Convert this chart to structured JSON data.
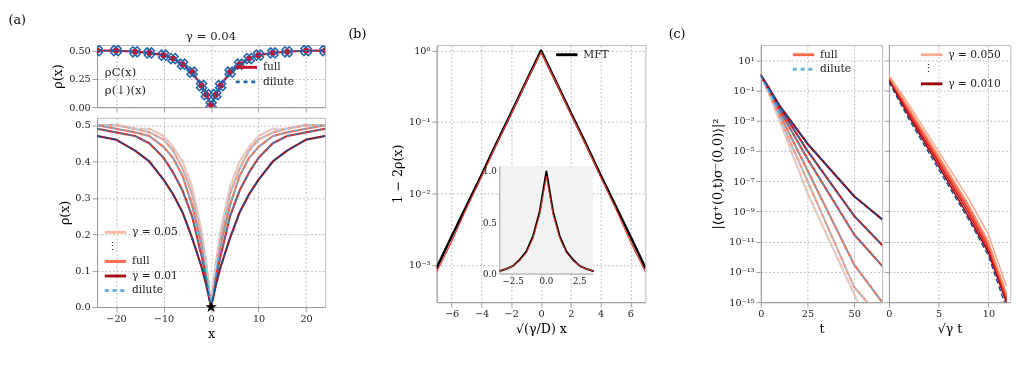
{
  "chart_data": [
    {
      "type": "line",
      "title": "(a)",
      "ylabel": "ρ(x)",
      "x": [
        -24,
        -20,
        -16,
        -13,
        -10,
        -8,
        -6,
        -4,
        -2,
        -1,
        0,
        1,
        2,
        4,
        6,
        8,
        10,
        13,
        16,
        20,
        24
      ],
      "xlim": [
        -24,
        24
      ],
      "xticks": [
        -20,
        -10,
        0,
        10,
        20
      ],
      "ylim": [
        0,
        0.55
      ],
      "yticks": [
        {
          "value": 0,
          "label": "0.00"
        },
        {
          "value": 0.25,
          "label": "0.25"
        },
        {
          "value": 0.5,
          "label": "0.50"
        }
      ],
      "tick_labels": "y",
      "grid": true,
      "legend": "right",
      "annotations": [
        "γ = 0.04",
        "ρC(x)",
        "ρ(↓)(x)"
      ],
      "series": [
        {
          "name": "full",
          "color": "#c8102e",
          "marker": "circle",
          "values": [
            0.5,
            0.5,
            0.49,
            0.48,
            0.46,
            0.43,
            0.38,
            0.31,
            0.19,
            0.11,
            0.02,
            0.11,
            0.19,
            0.31,
            0.38,
            0.43,
            0.46,
            0.48,
            0.49,
            0.5,
            0.5
          ]
        },
        {
          "name": "dilute",
          "color": "#2166ac",
          "marker": "cross",
          "line_style": "dashed",
          "values": [
            0.5,
            0.5,
            0.49,
            0.48,
            0.46,
            0.43,
            0.38,
            0.31,
            0.19,
            0.11,
            0.02,
            0.11,
            0.19,
            0.31,
            0.38,
            0.43,
            0.46,
            0.48,
            0.49,
            0.5,
            0.5
          ]
        }
      ]
    },
    {
      "type": "line",
      "xlabel": "x",
      "ylabel": "ρ(x)",
      "x": [
        -24,
        -20,
        -16,
        -13,
        -10,
        -8,
        -6,
        -4,
        -2,
        -1,
        0,
        1,
        2,
        4,
        6,
        8,
        10,
        13,
        16,
        20,
        24
      ],
      "xlim": [
        -24,
        24
      ],
      "xticks": [
        -20,
        -10,
        0,
        10,
        20
      ],
      "ylim": [
        0,
        0.52
      ],
      "yticks": [
        {
          "value": 0,
          "label": "0.0"
        },
        0.1,
        0.2,
        0.3,
        0.4,
        0.5
      ],
      "grid": true,
      "legend": "bottom left",
      "annotations": [
        "⋮"
      ],
      "series": [
        {
          "name": "γ = 0.05",
          "color": "#fcbba1",
          "values": [
            0.5,
            0.5,
            0.49,
            0.49,
            0.47,
            0.44,
            0.4,
            0.33,
            0.21,
            0.12,
            0,
            0.12,
            0.21,
            0.33,
            0.4,
            0.44,
            0.47,
            0.49,
            0.49,
            0.5,
            0.5
          ]
        },
        {
          "color": "#fc9272",
          "values": [
            0.5,
            0.5,
            0.49,
            0.48,
            0.46,
            0.43,
            0.38,
            0.31,
            0.19,
            0.11,
            0,
            0.11,
            0.19,
            0.31,
            0.38,
            0.43,
            0.46,
            0.48,
            0.49,
            0.5,
            0.5
          ]
        },
        {
          "name": "full",
          "color": "#fb6a4a",
          "values": [
            0.5,
            0.49,
            0.48,
            0.47,
            0.44,
            0.41,
            0.36,
            0.28,
            0.17,
            0.09,
            0,
            0.09,
            0.17,
            0.28,
            0.36,
            0.41,
            0.44,
            0.47,
            0.48,
            0.49,
            0.5
          ]
        },
        {
          "color": "#de2d26",
          "values": [
            0.49,
            0.48,
            0.47,
            0.45,
            0.41,
            0.37,
            0.32,
            0.25,
            0.14,
            0.08,
            0,
            0.08,
            0.14,
            0.25,
            0.32,
            0.37,
            0.41,
            0.45,
            0.47,
            0.48,
            0.49
          ]
        },
        {
          "name": "γ = 0.01",
          "color": "#a50f15",
          "values": [
            0.47,
            0.46,
            0.43,
            0.4,
            0.35,
            0.31,
            0.26,
            0.19,
            0.11,
            0.06,
            0,
            0.06,
            0.11,
            0.19,
            0.26,
            0.31,
            0.35,
            0.4,
            0.43,
            0.46,
            0.47
          ]
        },
        {
          "color": "#c6dbef",
          "line_style": "dashed",
          "values": [
            0.5,
            0.5,
            0.49,
            0.49,
            0.47,
            0.44,
            0.4,
            0.33,
            0.21,
            0.12,
            0,
            0.12,
            0.21,
            0.33,
            0.4,
            0.44,
            0.47,
            0.49,
            0.49,
            0.5,
            0.5
          ]
        },
        {
          "color": "#9ecae1",
          "line_style": "dashed",
          "values": [
            0.5,
            0.5,
            0.49,
            0.48,
            0.46,
            0.43,
            0.38,
            0.31,
            0.19,
            0.11,
            0,
            0.11,
            0.19,
            0.31,
            0.38,
            0.43,
            0.46,
            0.48,
            0.49,
            0.5,
            0.5
          ]
        },
        {
          "name": "dilute",
          "color": "#6baed6",
          "line_style": "dashed",
          "values": [
            0.5,
            0.49,
            0.48,
            0.47,
            0.44,
            0.41,
            0.36,
            0.28,
            0.17,
            0.09,
            0,
            0.09,
            0.17,
            0.28,
            0.36,
            0.41,
            0.44,
            0.47,
            0.48,
            0.49,
            0.5
          ]
        },
        {
          "color": "#3182bd",
          "line_style": "dashed",
          "values": [
            0.49,
            0.48,
            0.47,
            0.45,
            0.41,
            0.37,
            0.32,
            0.25,
            0.14,
            0.08,
            0,
            0.08,
            0.14,
            0.25,
            0.32,
            0.37,
            0.41,
            0.45,
            0.47,
            0.48,
            0.49
          ]
        },
        {
          "color": "#08519c",
          "line_style": "dashed",
          "values": [
            0.47,
            0.46,
            0.43,
            0.4,
            0.35,
            0.31,
            0.26,
            0.19,
            0.11,
            0.06,
            0,
            0.06,
            0.11,
            0.19,
            0.26,
            0.31,
            0.35,
            0.4,
            0.43,
            0.46,
            0.47
          ]
        },
        {
          "type": "scatter",
          "marker": "star",
          "color": "#000000",
          "x": [
            0
          ],
          "values": [
            0
          ]
        }
      ]
    },
    {
      "type": "line",
      "title": "(b)",
      "xlabel": "√(γ/D) x",
      "ylabel": "1 − 2ρ(x)",
      "log": true,
      "x": [
        -7,
        -6,
        -5,
        -4,
        -3,
        -2,
        -1,
        0,
        1,
        2,
        3,
        4,
        5,
        6,
        7
      ],
      "xlim": [
        -7,
        7
      ],
      "xticks": [
        -6,
        -4,
        -2,
        0,
        2,
        4,
        6
      ],
      "ylim": [
        0.0003,
        1.2
      ],
      "yticks": [
        {
          "value": 0.001,
          "label": "10⁻³"
        },
        {
          "value": 0.01,
          "label": "10⁻²"
        },
        {
          "value": 0.1,
          "label": "10⁻¹"
        },
        {
          "value": 1,
          "label": "10⁰"
        }
      ],
      "grid": true,
      "legend": "top right",
      "series": [
        {
          "name": "MFT",
          "color": "#000000",
          "values": [
            0.00091,
            0.0025,
            0.0067,
            0.018,
            0.05,
            0.135,
            0.37,
            1,
            0.37,
            0.135,
            0.05,
            0.018,
            0.0067,
            0.0025,
            0.00091
          ]
        },
        {
          "color": "#ef3b2c",
          "values": [
            0.0008,
            0.0021,
            0.0062,
            0.017,
            0.048,
            0.13,
            0.36,
            0.95,
            0.36,
            0.13,
            0.048,
            0.017,
            0.0062,
            0.0021,
            0.0008
          ]
        }
      ]
    },
    {
      "type": "line",
      "x": [
        -3.5,
        -3,
        -2.5,
        -2,
        -1.5,
        -1,
        -0.5,
        0,
        0.5,
        1,
        1.5,
        2,
        2.5,
        3,
        3.5
      ],
      "xlim": [
        -3.5,
        3.5
      ],
      "xticks": [
        {
          "value": -2.5,
          "label": "−2.5"
        },
        {
          "value": 0,
          "label": "0.0"
        },
        2.5
      ],
      "ylim": [
        0,
        1.05
      ],
      "yticks": [
        {
          "value": 0,
          "label": "0.0"
        },
        0.5,
        {
          "value": 1,
          "label": "1.0"
        }
      ],
      "series": [
        {
          "color": "#000000",
          "values": [
            0.03,
            0.05,
            0.08,
            0.14,
            0.22,
            0.37,
            0.61,
            1,
            0.61,
            0.37,
            0.22,
            0.14,
            0.08,
            0.05,
            0.03
          ]
        },
        {
          "color": "#ef3b2c",
          "values": [
            0.03,
            0.05,
            0.08,
            0.13,
            0.21,
            0.35,
            0.58,
            0.95,
            0.58,
            0.35,
            0.21,
            0.13,
            0.08,
            0.05,
            0.03
          ]
        }
      ]
    },
    {
      "type": "line",
      "title": "(c)",
      "xlabel": "t",
      "ylabel": "|⟨σ⁺(0,t)σ⁻(0,0)⟩|²",
      "log": true,
      "xlim": [
        0,
        65
      ],
      "xticks": [
        0,
        25,
        50
      ],
      "ylim": [
        1e-15,
        100
      ],
      "yticks": [
        {
          "value": 1e-15,
          "label": "10⁻¹⁵"
        },
        {
          "value": 1e-13,
          "label": "10⁻¹³"
        },
        {
          "value": 1e-11,
          "label": "10⁻¹¹"
        },
        {
          "value": 1e-09,
          "label": "10⁻⁹"
        },
        {
          "value": 1e-07,
          "label": "10⁻⁷"
        },
        {
          "value": 1e-05,
          "label": "10⁻⁵"
        },
        {
          "value": 0.001,
          "label": "10⁻³"
        },
        {
          "value": 0.1,
          "label": "10⁻¹"
        },
        {
          "value": 10,
          "label": "10¹"
        }
      ],
      "grid": true,
      "legend": "top right",
      "series": [
        {
          "color": "#fcbba1",
          "x": [
            0,
            5,
            10,
            25,
            52
          ],
          "values": [
            1,
            0.04,
            0.001,
            1.6e-08,
            1e-15
          ]
        },
        {
          "color": "#fc9272",
          "x": [
            0,
            5,
            10,
            25,
            50,
            57
          ],
          "values": [
            1,
            0.05,
            0.0016,
            1e-07,
            1e-14,
            1e-15
          ]
        },
        {
          "name": "full",
          "color": "#fb6a4a",
          "x": [
            0,
            5,
            10,
            25,
            50,
            65
          ],
          "values": [
            1,
            0.06,
            0.003,
            5e-07,
            3e-13,
            1e-15
          ]
        },
        {
          "color": "#ef3b2c",
          "x": [
            0,
            5,
            10,
            25,
            50,
            65
          ],
          "values": [
            1,
            0.08,
            0.005,
            3e-06,
            3e-11,
            2.5e-13
          ]
        },
        {
          "color": "#cb181d",
          "x": [
            0,
            5,
            10,
            25,
            50,
            65
          ],
          "values": [
            1,
            0.1,
            0.008,
            1e-05,
            5e-10,
            6e-12
          ]
        },
        {
          "color": "#99000d",
          "x": [
            0,
            5,
            10,
            25,
            50,
            65
          ],
          "values": [
            1,
            0.1,
            0.01,
            3e-05,
            1e-08,
            3e-10
          ]
        },
        {
          "color": "#c6dbef",
          "line_style": "dashed",
          "x": [
            0,
            5,
            10,
            25,
            52
          ],
          "values": [
            1,
            0.04,
            0.001,
            1.6e-08,
            1e-15
          ]
        },
        {
          "color": "#9ecae1",
          "line_style": "dashed",
          "x": [
            0,
            5,
            10,
            25,
            50,
            57
          ],
          "values": [
            1,
            0.05,
            0.0016,
            1e-07,
            1e-14,
            1e-15
          ]
        },
        {
          "name": "dilute",
          "color": "#6baed6",
          "line_style": "dashed",
          "x": [
            0,
            5,
            10,
            25,
            50,
            65
          ],
          "values": [
            1,
            0.06,
            0.003,
            5e-07,
            3e-13,
            1e-15
          ]
        },
        {
          "color": "#4292c6",
          "line_style": "dashed",
          "x": [
            0,
            5,
            10,
            25,
            50,
            65
          ],
          "values": [
            1,
            0.08,
            0.005,
            3e-06,
            3e-11,
            2.5e-13
          ]
        },
        {
          "color": "#2171b5",
          "line_style": "dashed",
          "x": [
            0,
            5,
            10,
            25,
            50,
            65
          ],
          "values": [
            1,
            0.1,
            0.008,
            1e-05,
            5e-10,
            6e-12
          ]
        },
        {
          "color": "#08519c",
          "line_style": "dashed",
          "x": [
            0,
            5,
            10,
            25,
            50,
            65
          ],
          "values": [
            1,
            0.1,
            0.01,
            3e-05,
            1e-08,
            3e-10
          ]
        }
      ]
    },
    {
      "type": "line",
      "xlabel": "√γ t",
      "log": true,
      "x": [
        0,
        2,
        5,
        8,
        10,
        11.8
      ],
      "xlim": [
        0,
        12.2
      ],
      "xticks": [
        0,
        5,
        10
      ],
      "ylim": [
        1e-15,
        100
      ],
      "yticks": [
        1e-15,
        1e-13,
        1e-11,
        1e-09,
        1e-07,
        1e-05,
        0.001,
        0.1,
        10
      ],
      "tick_labels": "x",
      "grid": true,
      "legend": "top right",
      "annotations": [
        "⋮"
      ],
      "series": [
        {
          "name": "γ = 0.050",
          "color": "#fcab8f",
          "values": [
            1,
            0.012,
            9e-06,
            7e-09,
            3e-11,
            1.2e-14
          ]
        },
        {
          "color": "#fc9272",
          "values": [
            0.9,
            0.007,
            4.5e-06,
            2.8e-09,
            1e-11,
            4e-15
          ]
        },
        {
          "color": "#fb6a4a",
          "values": [
            0.8,
            0.0055,
            3.3e-06,
            1.9e-09,
            7e-12,
            3e-15
          ]
        },
        {
          "color": "#ef3b2c",
          "values": [
            0.7,
            0.0042,
            2.4e-06,
            1.3e-09,
            5e-12,
            2.2e-15
          ]
        },
        {
          "color": "#cb181d",
          "values": [
            0.6,
            0.003,
            1.6e-06,
            8e-10,
            3.2e-12,
            1.5e-15
          ]
        },
        {
          "name": "γ = 0.010",
          "color": "#99000d",
          "values": [
            0.5,
            0.002,
            1e-06,
            4.5e-10,
            2e-12,
            1e-15
          ]
        },
        {
          "color": "#08519c",
          "line_style": "dashed",
          "x": [
            0,
            2,
            5,
            8,
            10,
            11.6
          ],
          "values": [
            0.35,
            0.0013,
            6e-07,
            3e-10,
            1.2e-12,
            1e-15
          ]
        }
      ]
    }
  ]
}
